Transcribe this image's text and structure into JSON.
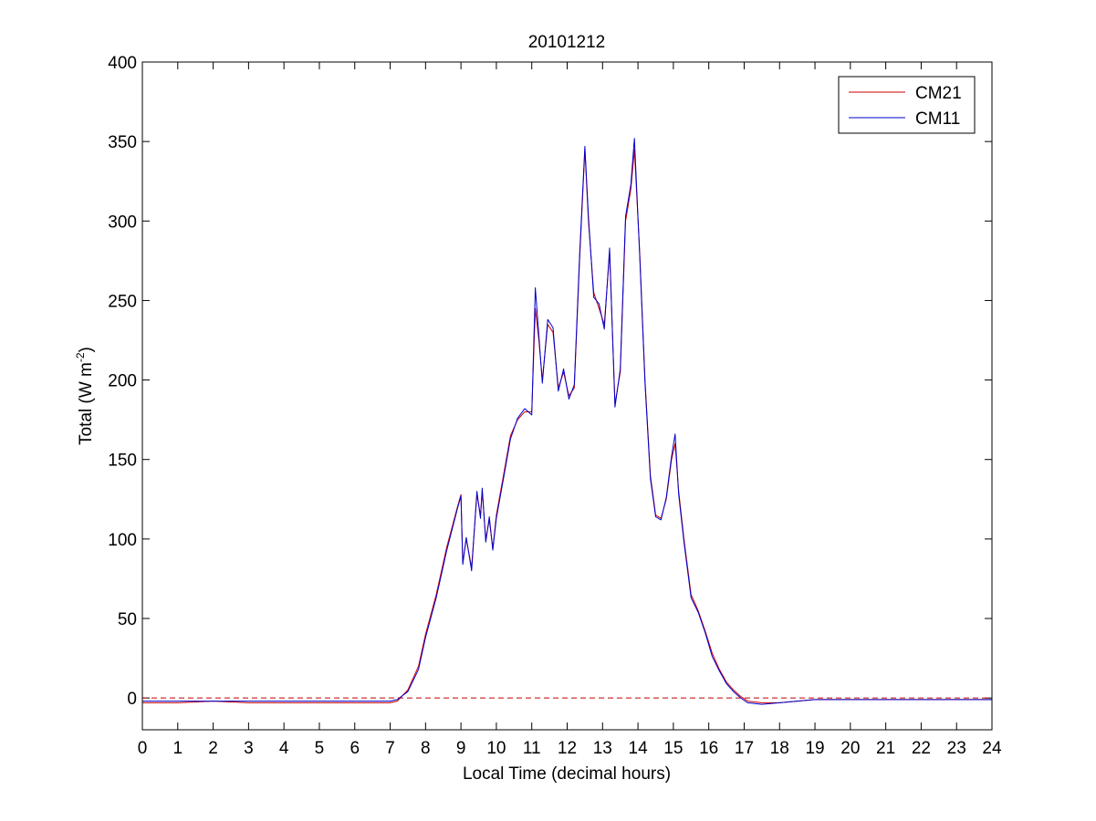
{
  "chart_data": {
    "type": "line",
    "title": "20101212",
    "xlabel": "Local Time (decimal hours)",
    "ylabel_main": "Total (W m",
    "ylabel_sup": "-2",
    "ylabel_close": ")",
    "xlim": [
      0,
      24
    ],
    "ylim": [
      -20,
      400
    ],
    "xticks": [
      0,
      1,
      2,
      3,
      4,
      5,
      6,
      7,
      8,
      9,
      10,
      11,
      12,
      13,
      14,
      15,
      16,
      17,
      18,
      19,
      20,
      21,
      22,
      23,
      24
    ],
    "yticks": [
      0,
      50,
      100,
      150,
      200,
      250,
      300,
      350,
      400
    ],
    "grid": false,
    "legend_position": "top-right",
    "reference_line": {
      "y": 0,
      "style": "dashed",
      "color": "#c00000"
    },
    "series": [
      {
        "name": "CM21",
        "color": "#cc0000",
        "x": [
          0,
          1,
          2,
          3,
          4,
          5,
          6,
          7,
          7.2,
          7.5,
          7.8,
          8.0,
          8.3,
          8.6,
          8.9,
          9.0,
          9.05,
          9.15,
          9.3,
          9.45,
          9.55,
          9.6,
          9.7,
          9.8,
          9.9,
          10.0,
          10.2,
          10.4,
          10.6,
          10.8,
          11.0,
          11.1,
          11.2,
          11.3,
          11.45,
          11.6,
          11.75,
          11.9,
          12.05,
          12.2,
          12.35,
          12.5,
          12.6,
          12.75,
          12.9,
          13.05,
          13.2,
          13.35,
          13.5,
          13.65,
          13.8,
          13.9,
          14.05,
          14.2,
          14.35,
          14.5,
          14.65,
          14.8,
          14.95,
          15.05,
          15.15,
          15.3,
          15.5,
          15.7,
          15.9,
          16.1,
          16.3,
          16.5,
          16.7,
          16.9,
          17.1,
          17.5,
          18,
          19,
          20,
          21,
          22,
          23,
          24
        ],
        "y": [
          -3,
          -3,
          -2,
          -3,
          -3,
          -3,
          -3,
          -3,
          -2,
          5,
          20,
          40,
          65,
          95,
          120,
          128,
          85,
          100,
          82,
          128,
          115,
          130,
          100,
          112,
          94,
          115,
          140,
          165,
          175,
          180,
          180,
          245,
          225,
          200,
          235,
          230,
          195,
          205,
          190,
          195,
          275,
          345,
          300,
          255,
          245,
          235,
          280,
          185,
          205,
          300,
          320,
          345,
          280,
          200,
          140,
          115,
          113,
          125,
          150,
          160,
          130,
          100,
          65,
          55,
          42,
          28,
          18,
          10,
          5,
          1,
          -2,
          -3,
          -3,
          -1,
          -1,
          -1,
          -1,
          -1,
          -1
        ]
      },
      {
        "name": "CM11",
        "color": "#0000cc",
        "x": [
          0,
          1,
          2,
          3,
          4,
          5,
          6,
          7,
          7.2,
          7.5,
          7.8,
          8.0,
          8.3,
          8.6,
          8.9,
          9.0,
          9.05,
          9.15,
          9.3,
          9.45,
          9.55,
          9.6,
          9.7,
          9.8,
          9.9,
          10.0,
          10.2,
          10.4,
          10.6,
          10.8,
          11.0,
          11.1,
          11.2,
          11.3,
          11.45,
          11.6,
          11.75,
          11.9,
          12.05,
          12.2,
          12.35,
          12.5,
          12.6,
          12.75,
          12.9,
          13.05,
          13.2,
          13.35,
          13.5,
          13.65,
          13.8,
          13.9,
          14.05,
          14.2,
          14.35,
          14.5,
          14.65,
          14.8,
          14.95,
          15.05,
          15.15,
          15.3,
          15.5,
          15.7,
          15.9,
          16.1,
          16.3,
          16.5,
          16.7,
          16.9,
          17.1,
          17.5,
          18,
          19,
          20,
          21,
          22,
          23,
          24
        ],
        "y": [
          -2,
          -2,
          -2,
          -2,
          -2,
          -2,
          -2,
          -2,
          -1,
          4,
          18,
          38,
          63,
          93,
          119,
          127,
          84,
          101,
          80,
          130,
          113,
          132,
          98,
          114,
          93,
          113,
          138,
          163,
          176,
          182,
          178,
          258,
          228,
          198,
          238,
          233,
          193,
          207,
          188,
          197,
          278,
          347,
          303,
          252,
          248,
          232,
          283,
          183,
          207,
          303,
          323,
          352,
          278,
          198,
          138,
          114,
          112,
          126,
          152,
          166,
          128,
          98,
          63,
          54,
          41,
          26,
          17,
          9,
          4,
          0,
          -3,
          -4,
          -3,
          -1,
          -1,
          -1,
          -1,
          -1,
          -1
        ]
      }
    ]
  }
}
